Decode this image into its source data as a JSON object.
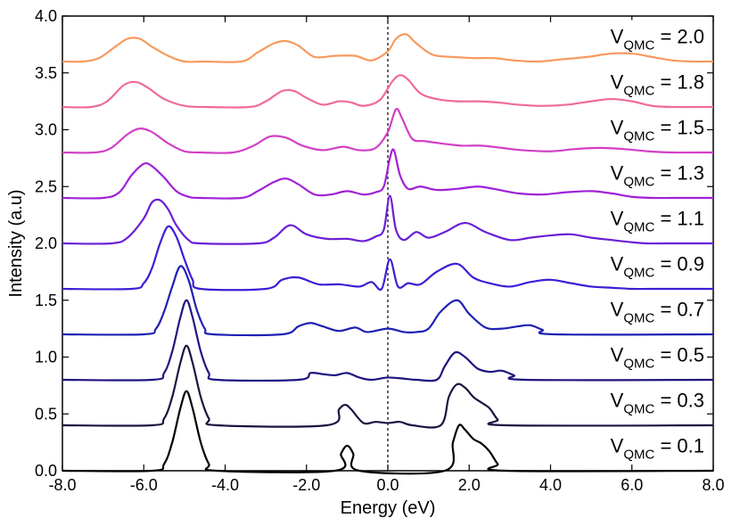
{
  "chart_data": {
    "type": "line",
    "xlabel": "Energy (eV)",
    "ylabel": "Intensity (a.u)",
    "xlim": [
      -8.0,
      8.0
    ],
    "ylim": [
      0.0,
      4.0
    ],
    "x_ticks": [
      "-8.0",
      "-6.0",
      "-4.0",
      "-2.0",
      "0.0",
      "2.0",
      "4.0",
      "6.0",
      "8.0"
    ],
    "y_ticks": [
      "0.0",
      "0.5",
      "1.0",
      "1.5",
      "2.0",
      "2.5",
      "3.0",
      "3.5",
      "4.0"
    ],
    "fermi_line_x": 0.0,
    "label_prefix": "V",
    "label_subscript": "QMC",
    "series": [
      {
        "label_value": "= 0.1",
        "offset": 0.0,
        "color": "#000000",
        "x": [
          -5.8,
          -5.5,
          -5.3,
          -5.1,
          -4.95,
          -4.8,
          -4.6,
          -4.4,
          -4.2,
          -1.3,
          -1.15,
          -1.0,
          -0.85,
          -0.7,
          1.4,
          1.6,
          1.75,
          1.9,
          2.1,
          2.3,
          2.5,
          2.7,
          2.9
        ],
        "y": [
          0.0,
          0.06,
          0.25,
          0.55,
          0.7,
          0.55,
          0.25,
          0.06,
          0.0,
          0.0,
          0.15,
          0.22,
          0.15,
          0.0,
          0.0,
          0.25,
          0.4,
          0.36,
          0.28,
          0.24,
          0.17,
          0.06,
          0.0
        ]
      },
      {
        "label_value": "= 0.3",
        "offset": 0.4,
        "color": "#1a1440",
        "x": [
          -5.8,
          -5.5,
          -5.3,
          -5.1,
          -4.95,
          -4.8,
          -4.6,
          -4.4,
          -4.2,
          -1.5,
          -1.2,
          -1.05,
          -0.9,
          -0.6,
          -0.3,
          0.0,
          0.3,
          0.6,
          1.3,
          1.5,
          1.7,
          1.9,
          2.1,
          2.3,
          2.5,
          2.7,
          2.9
        ],
        "y": [
          0.0,
          0.06,
          0.25,
          0.55,
          0.7,
          0.55,
          0.25,
          0.06,
          0.0,
          0.0,
          0.14,
          0.18,
          0.14,
          0.02,
          0.03,
          0.02,
          0.03,
          0.0,
          0.0,
          0.25,
          0.36,
          0.33,
          0.25,
          0.2,
          0.15,
          0.05,
          0.0
        ]
      },
      {
        "label_value": "= 0.5",
        "offset": 0.8,
        "color": "#1f1580",
        "x": [
          -5.8,
          -5.5,
          -5.3,
          -5.1,
          -4.95,
          -4.8,
          -4.6,
          -4.4,
          -4.2,
          -2.2,
          -1.9,
          -1.6,
          -1.3,
          -1.0,
          -0.7,
          -0.4,
          0.0,
          0.4,
          0.7,
          1.2,
          1.4,
          1.65,
          1.9,
          2.2,
          2.5,
          2.8,
          3.1,
          3.4
        ],
        "y": [
          0.0,
          0.06,
          0.25,
          0.55,
          0.7,
          0.55,
          0.25,
          0.06,
          0.0,
          0.0,
          0.06,
          0.05,
          0.04,
          0.06,
          0.02,
          0.0,
          0.02,
          0.01,
          0.0,
          0.0,
          0.12,
          0.24,
          0.2,
          0.1,
          0.07,
          0.08,
          0.04,
          0.0
        ]
      },
      {
        "label_value": "= 0.7",
        "offset": 1.2,
        "color": "#1f20b4",
        "x": [
          -6.0,
          -5.7,
          -5.5,
          -5.3,
          -5.1,
          -4.9,
          -4.7,
          -4.5,
          -4.3,
          -2.6,
          -2.2,
          -1.9,
          -1.6,
          -1.2,
          -0.8,
          -0.5,
          0.0,
          0.4,
          0.7,
          1.0,
          1.3,
          1.7,
          2.0,
          2.4,
          2.8,
          3.2,
          3.5,
          3.8,
          4.1
        ],
        "y": [
          0.0,
          0.05,
          0.2,
          0.42,
          0.6,
          0.48,
          0.22,
          0.05,
          0.0,
          0.0,
          0.07,
          0.1,
          0.07,
          0.03,
          0.06,
          0.02,
          0.05,
          0.02,
          0.02,
          0.05,
          0.2,
          0.3,
          0.18,
          0.06,
          0.05,
          0.07,
          0.08,
          0.04,
          0.0
        ]
      },
      {
        "label_value": "= 0.9",
        "offset": 1.6,
        "color": "#3d1ed6",
        "x": [
          -6.3,
          -6.0,
          -5.8,
          -5.6,
          -5.4,
          -5.2,
          -5.0,
          -4.8,
          -4.6,
          -3.0,
          -2.6,
          -2.2,
          -1.7,
          -1.2,
          -0.7,
          -0.4,
          -0.15,
          0.05,
          0.25,
          0.5,
          0.8,
          1.2,
          1.7,
          2.1,
          2.5,
          3.0,
          3.5,
          4.0,
          4.5,
          5.0,
          5.5,
          6.0,
          6.5
        ],
        "y": [
          0.0,
          0.05,
          0.18,
          0.4,
          0.55,
          0.46,
          0.26,
          0.08,
          0.0,
          0.0,
          0.08,
          0.1,
          0.04,
          0.04,
          0.02,
          0.06,
          0.0,
          0.26,
          0.02,
          0.05,
          0.04,
          0.15,
          0.22,
          0.1,
          0.05,
          0.02,
          0.06,
          0.08,
          0.05,
          0.02,
          0.01,
          0.0,
          0.0
        ]
      },
      {
        "label_value": "= 1.1",
        "offset": 2.0,
        "color": "#6a1fd6",
        "x": [
          -6.8,
          -6.4,
          -6.0,
          -5.8,
          -5.6,
          -5.4,
          -5.2,
          -4.9,
          -4.6,
          -3.2,
          -2.8,
          -2.4,
          -2.0,
          -1.5,
          -1.0,
          -0.6,
          -0.3,
          -0.1,
          0.05,
          0.2,
          0.4,
          0.7,
          1.0,
          1.4,
          1.9,
          2.4,
          3.0,
          3.5,
          4.0,
          4.5,
          5.0,
          5.5,
          6.0,
          6.4,
          6.8
        ],
        "y": [
          0.0,
          0.05,
          0.22,
          0.36,
          0.38,
          0.3,
          0.16,
          0.03,
          0.0,
          0.0,
          0.05,
          0.16,
          0.08,
          0.04,
          0.04,
          0.02,
          0.06,
          0.12,
          0.42,
          0.12,
          0.03,
          0.1,
          0.05,
          0.1,
          0.18,
          0.1,
          0.03,
          0.05,
          0.07,
          0.08,
          0.05,
          0.03,
          0.01,
          0.0,
          0.0
        ]
      },
      {
        "label_value": "= 1.3",
        "offset": 2.4,
        "color": "#a021d6",
        "x": [
          -7.0,
          -6.6,
          -6.3,
          -6.0,
          -5.8,
          -5.5,
          -5.2,
          -4.9,
          -4.6,
          -3.6,
          -3.2,
          -2.8,
          -2.5,
          -2.2,
          -1.8,
          -1.4,
          -1.0,
          -0.6,
          -0.3,
          -0.1,
          0.05,
          0.15,
          0.3,
          0.5,
          0.8,
          1.2,
          1.7,
          2.2,
          2.6,
          3.2,
          3.8,
          4.4,
          5.0,
          5.5,
          6.0,
          6.5,
          7.0
        ],
        "y": [
          0.0,
          0.05,
          0.2,
          0.3,
          0.28,
          0.18,
          0.06,
          0.01,
          0.0,
          0.0,
          0.06,
          0.14,
          0.17,
          0.12,
          0.03,
          0.03,
          0.06,
          0.03,
          0.05,
          0.1,
          0.35,
          0.42,
          0.2,
          0.08,
          0.1,
          0.07,
          0.08,
          0.1,
          0.08,
          0.04,
          0.03,
          0.05,
          0.06,
          0.04,
          0.01,
          0.0,
          0.0
        ]
      },
      {
        "label_value": "= 1.5",
        "offset": 2.8,
        "color": "#d23fc6",
        "x": [
          -7.2,
          -6.8,
          -6.4,
          -6.1,
          -5.8,
          -5.4,
          -5.0,
          -4.6,
          -3.8,
          -3.3,
          -2.9,
          -2.5,
          -2.1,
          -1.6,
          -1.1,
          -0.7,
          -0.3,
          0.0,
          0.2,
          0.35,
          0.6,
          0.9,
          1.3,
          1.8,
          2.3,
          2.8,
          3.3,
          4.0,
          4.6,
          5.2,
          5.8,
          6.4,
          7.0
        ],
        "y": [
          0.0,
          0.04,
          0.16,
          0.21,
          0.18,
          0.08,
          0.01,
          0.0,
          0.0,
          0.06,
          0.14,
          0.13,
          0.06,
          0.02,
          0.05,
          0.02,
          0.04,
          0.18,
          0.38,
          0.3,
          0.12,
          0.1,
          0.08,
          0.06,
          0.06,
          0.04,
          0.02,
          0.01,
          0.03,
          0.04,
          0.03,
          0.01,
          0.0
        ]
      },
      {
        "label_value": "= 1.8",
        "offset": 3.2,
        "color": "#f06a9a",
        "x": [
          -7.3,
          -6.9,
          -6.5,
          -6.2,
          -5.9,
          -5.5,
          -5.0,
          -4.5,
          -3.4,
          -3.0,
          -2.6,
          -2.3,
          -2.0,
          -1.6,
          -1.2,
          -0.9,
          -0.6,
          -0.2,
          0.1,
          0.3,
          0.5,
          0.8,
          1.2,
          1.7,
          2.2,
          2.7,
          3.2,
          3.8,
          4.4,
          5.0,
          5.5,
          6.0,
          6.5,
          7.0
        ],
        "y": [
          0.0,
          0.05,
          0.19,
          0.22,
          0.17,
          0.07,
          0.01,
          0.0,
          0.0,
          0.05,
          0.14,
          0.14,
          0.08,
          0.02,
          0.05,
          0.04,
          0.01,
          0.06,
          0.22,
          0.28,
          0.24,
          0.12,
          0.07,
          0.05,
          0.05,
          0.04,
          0.02,
          0.01,
          0.02,
          0.05,
          0.07,
          0.05,
          0.01,
          0.0
        ]
      },
      {
        "label_value": "= 2.0",
        "offset": 3.6,
        "color": "#f79a5c",
        "x": [
          -7.5,
          -7.1,
          -6.7,
          -6.4,
          -6.1,
          -5.8,
          -5.4,
          -5.0,
          -4.5,
          -3.6,
          -3.2,
          -2.8,
          -2.5,
          -2.2,
          -1.8,
          -1.3,
          -0.8,
          -0.4,
          0.0,
          0.2,
          0.45,
          0.7,
          1.1,
          1.6,
          2.1,
          2.6,
          3.1,
          3.7,
          4.3,
          4.9,
          5.5,
          6.0,
          6.5,
          7.0,
          7.5
        ],
        "y": [
          0.0,
          0.03,
          0.13,
          0.2,
          0.2,
          0.13,
          0.05,
          0.0,
          0.0,
          0.0,
          0.08,
          0.16,
          0.18,
          0.14,
          0.04,
          0.05,
          0.05,
          0.01,
          0.09,
          0.2,
          0.24,
          0.16,
          0.06,
          0.04,
          0.03,
          0.03,
          0.01,
          0.0,
          0.02,
          0.04,
          0.07,
          0.07,
          0.04,
          0.01,
          0.0
        ]
      }
    ]
  }
}
